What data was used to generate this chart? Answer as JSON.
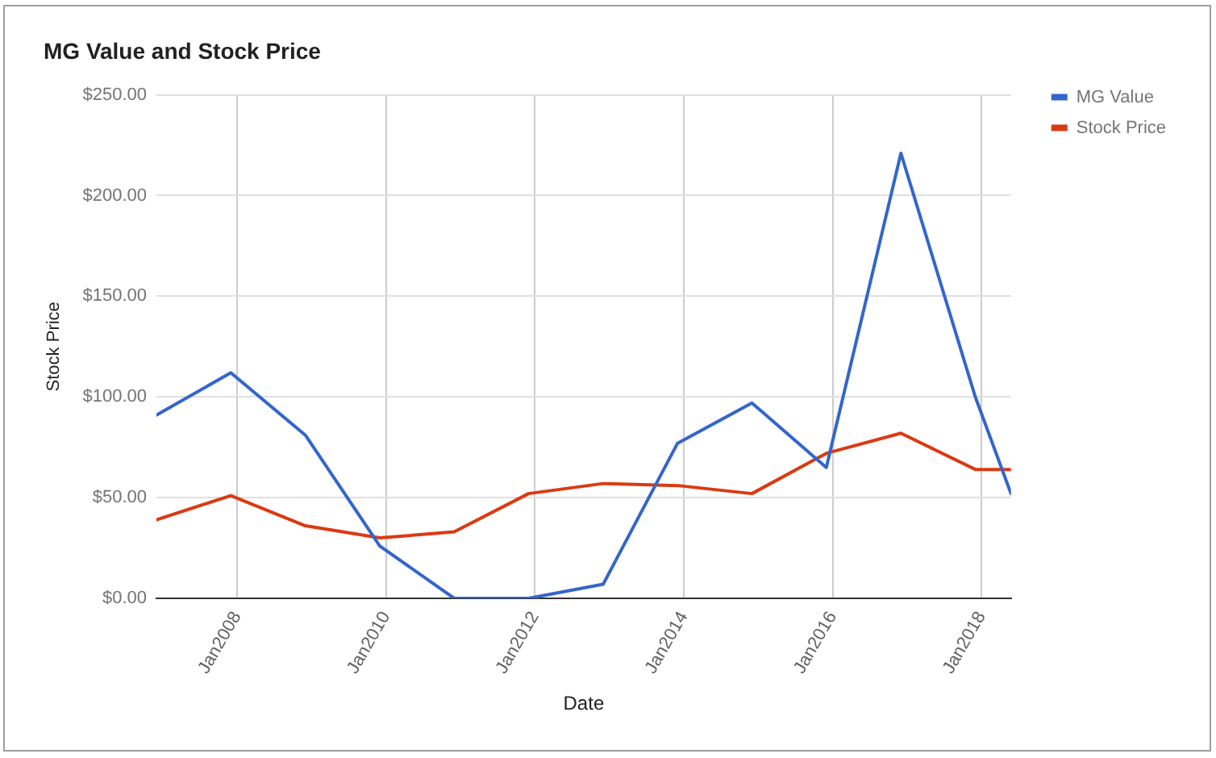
{
  "chart_data": {
    "type": "line",
    "title": "MG Value and Stock Price",
    "xlabel": "Date",
    "ylabel": "Stock Price",
    "x": [
      "2006-12-01",
      "2007-12-01",
      "2008-12-01",
      "2009-12-01",
      "2010-12-01",
      "2011-12-01",
      "2012-12-01",
      "2013-12-01",
      "2014-12-01",
      "2015-12-01",
      "2016-12-01",
      "2017-12-01",
      "2018-05-25"
    ],
    "xlim": [
      "2006-12-01",
      "2018-05-25"
    ],
    "xticks": [
      {
        "value": "2008-01-01",
        "label": "Jan2008"
      },
      {
        "value": "2010-01-01",
        "label": "Jan2010"
      },
      {
        "value": "2012-01-01",
        "label": "Jan2012"
      },
      {
        "value": "2014-01-01",
        "label": "Jan2014"
      },
      {
        "value": "2016-01-01",
        "label": "Jan2016"
      },
      {
        "value": "2018-01-01",
        "label": "Jan2018"
      }
    ],
    "ylim": [
      0,
      250
    ],
    "yticks": [
      {
        "value": 0,
        "label": "$0.00"
      },
      {
        "value": 50,
        "label": "$50.00"
      },
      {
        "value": 100,
        "label": "$100.00"
      },
      {
        "value": 150,
        "label": "$150.00"
      },
      {
        "value": 200,
        "label": "$200.00"
      },
      {
        "value": 250,
        "label": "$250.00"
      }
    ],
    "series": [
      {
        "name": "MG Value",
        "color": "#3366cc",
        "values": [
          91,
          112,
          81,
          26,
          0,
          0,
          7,
          77,
          97,
          65,
          221,
          100,
          52
        ]
      },
      {
        "name": "Stock Price",
        "color": "#dc3912",
        "values": [
          39,
          51,
          36,
          30,
          33,
          52,
          57,
          56,
          52,
          72,
          82,
          64,
          64
        ]
      }
    ],
    "grid": true,
    "legend": "top right",
    "marker": "none",
    "line_style": "solid"
  }
}
